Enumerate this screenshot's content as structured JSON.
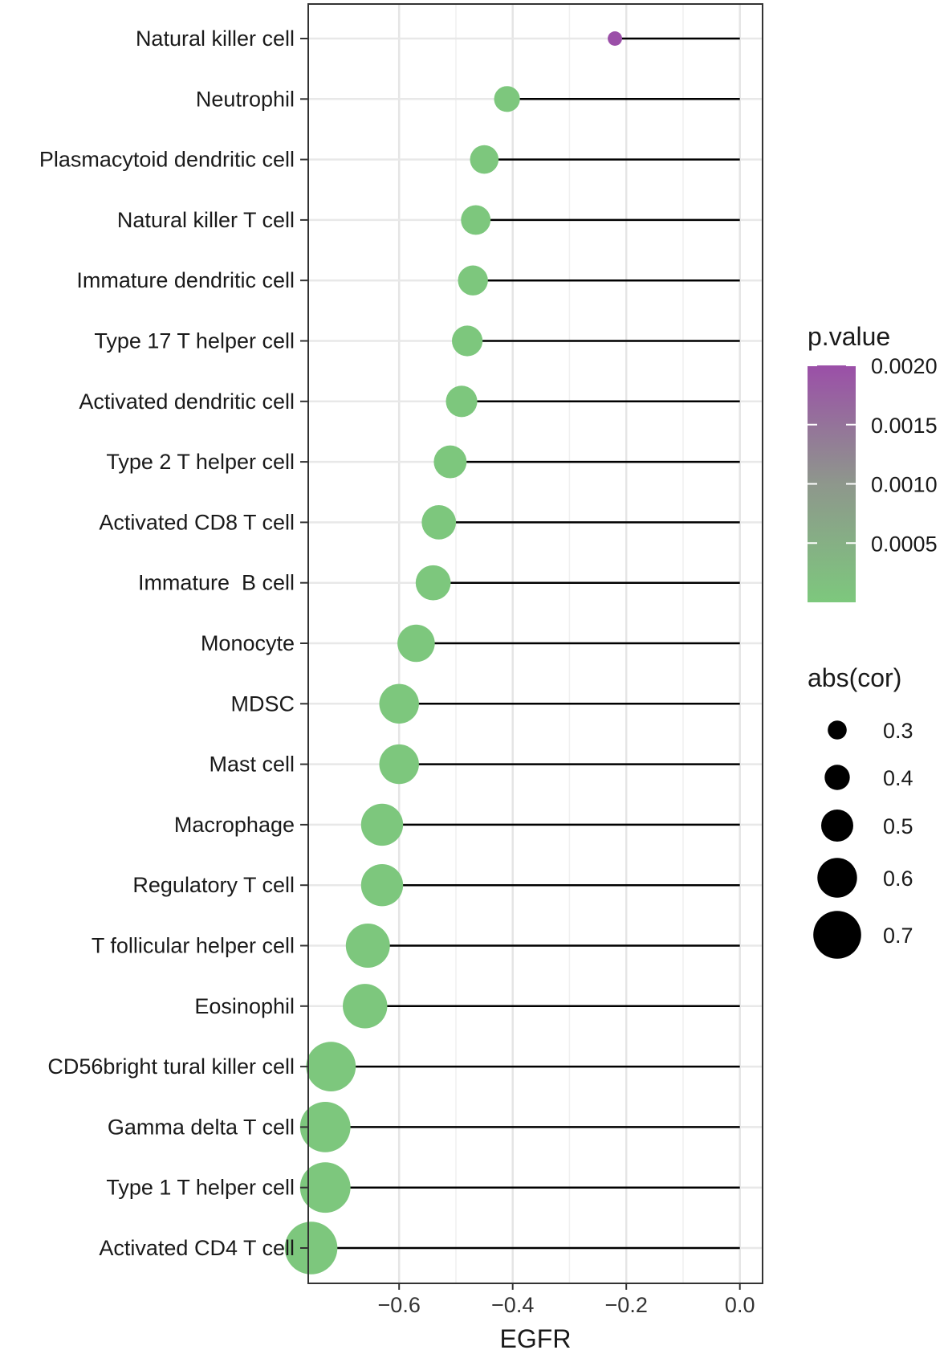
{
  "chart_data": {
    "type": "lollipop",
    "xlabel": "EGFR",
    "xlim": [
      -0.76,
      0.04
    ],
    "x_ticks": [
      -0.6,
      -0.4,
      -0.2,
      0.0
    ],
    "x_tick_labels": [
      "−0.6",
      "−0.4",
      "−0.2",
      "0.0"
    ],
    "grid": true,
    "categories": [
      "Natural killer cell",
      "Neutrophil",
      "Plasmacytoid dendritic cell",
      "Natural killer T cell",
      "Immature dendritic cell",
      "Type 17 T helper cell",
      "Activated dendritic cell",
      "Type 2 T helper cell",
      "Activated CD8 T cell",
      "Immature  B cell",
      "Monocyte",
      "MDSC",
      "Mast cell",
      "Macrophage",
      "Regulatory T cell",
      "T follicular helper cell",
      "Eosinophil",
      "CD56bright tural killer cell",
      "Gamma delta T cell",
      "Type 1 T helper cell",
      "Activated CD4 T cell"
    ],
    "cor": [
      -0.22,
      -0.41,
      -0.45,
      -0.465,
      -0.47,
      -0.48,
      -0.49,
      -0.51,
      -0.53,
      -0.54,
      -0.57,
      -0.6,
      -0.6,
      -0.63,
      -0.63,
      -0.655,
      -0.66,
      -0.72,
      -0.73,
      -0.73,
      -0.755
    ],
    "p_value": [
      0.002,
      1e-05,
      1e-05,
      1e-05,
      1e-05,
      1e-05,
      1e-05,
      1e-05,
      1e-05,
      1e-05,
      1e-05,
      1e-05,
      1e-05,
      1e-05,
      1e-05,
      1e-05,
      1e-05,
      1e-05,
      1e-05,
      1e-05,
      1e-05
    ],
    "color_legend": {
      "title": "p.value",
      "labels": [
        "0.0020",
        "0.0015",
        "0.0010",
        "0.0005"
      ],
      "values": [
        0.002,
        0.0015,
        0.001,
        0.0005
      ],
      "range": [
        0,
        0.002
      ],
      "color_low": "#7dc87d",
      "color_high": "#9b4fa8",
      "placement": "right"
    },
    "size_legend": {
      "title": "abs(cor)",
      "labels": [
        "0.3",
        "0.4",
        "0.5",
        "0.6",
        "0.7"
      ],
      "values": [
        0.3,
        0.4,
        0.5,
        0.6,
        0.7
      ],
      "placement": "right"
    }
  }
}
